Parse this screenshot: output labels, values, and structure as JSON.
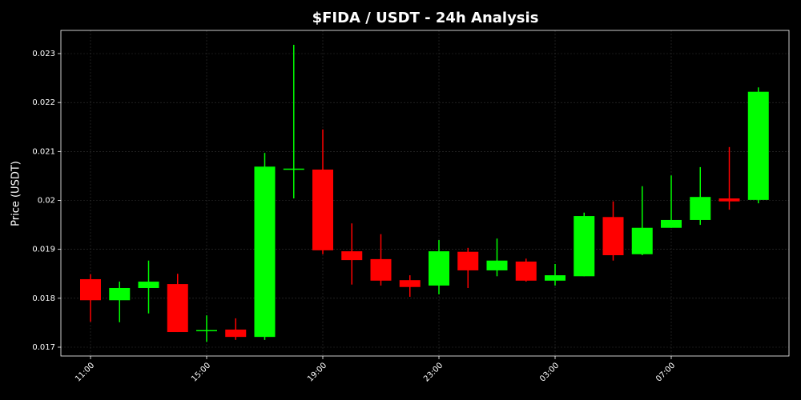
{
  "chart_data": {
    "type": "candlestick",
    "title": "$FIDA / USDT - 24h Analysis",
    "y_label": "Price (USDT)",
    "categories": [
      "11:00",
      null,
      null,
      null,
      "15:00",
      null,
      null,
      null,
      "19:00",
      null,
      null,
      null,
      "23:00",
      null,
      null,
      null,
      "03:00",
      null,
      null,
      null,
      "07:00",
      null,
      null,
      null
    ],
    "open": [
      0.01839,
      0.01796,
      0.01821,
      0.01829,
      0.01734,
      0.01736,
      0.01721,
      0.02063,
      0.02063,
      0.01896,
      0.0188,
      0.01837,
      0.01826,
      0.01895,
      0.01857,
      0.01875,
      0.01836,
      0.01845,
      0.01966,
      0.0189,
      0.01944,
      0.0196,
      0.02004,
      0.02001
    ],
    "high": [
      0.01849,
      0.01834,
      0.01877,
      0.0185,
      0.01765,
      0.01759,
      0.02097,
      0.02318,
      0.02145,
      0.01953,
      0.01931,
      0.01847,
      0.01919,
      0.01903,
      0.01922,
      0.01881,
      0.0187,
      0.01975,
      0.01998,
      0.02029,
      0.02051,
      0.02068,
      0.02109,
      0.02231
    ],
    "low": [
      0.01752,
      0.01751,
      0.01769,
      0.01731,
      0.01711,
      0.01715,
      0.01715,
      0.02004,
      0.0189,
      0.01828,
      0.01826,
      0.01803,
      0.01808,
      0.01821,
      0.01845,
      0.01834,
      0.01826,
      0.01845,
      0.01877,
      0.01888,
      0.01944,
      0.0195,
      0.01981,
      0.01994
    ],
    "close": [
      0.01796,
      0.01821,
      0.01834,
      0.01731,
      0.01735,
      0.01721,
      0.02069,
      0.02065,
      0.01898,
      0.01878,
      0.01836,
      0.01823,
      0.01896,
      0.01857,
      0.01877,
      0.01836,
      0.01847,
      0.01968,
      0.01888,
      0.01944,
      0.0196,
      0.02007,
      0.01998,
      0.02222
    ],
    "up_color": "#00ff00",
    "down_color": "#ff0000",
    "ylim": [
      0.01682,
      0.023474
    ],
    "yticks": [
      0.017,
      0.018,
      0.019,
      0.02,
      0.021,
      0.022,
      0.023
    ],
    "grid": true
  }
}
